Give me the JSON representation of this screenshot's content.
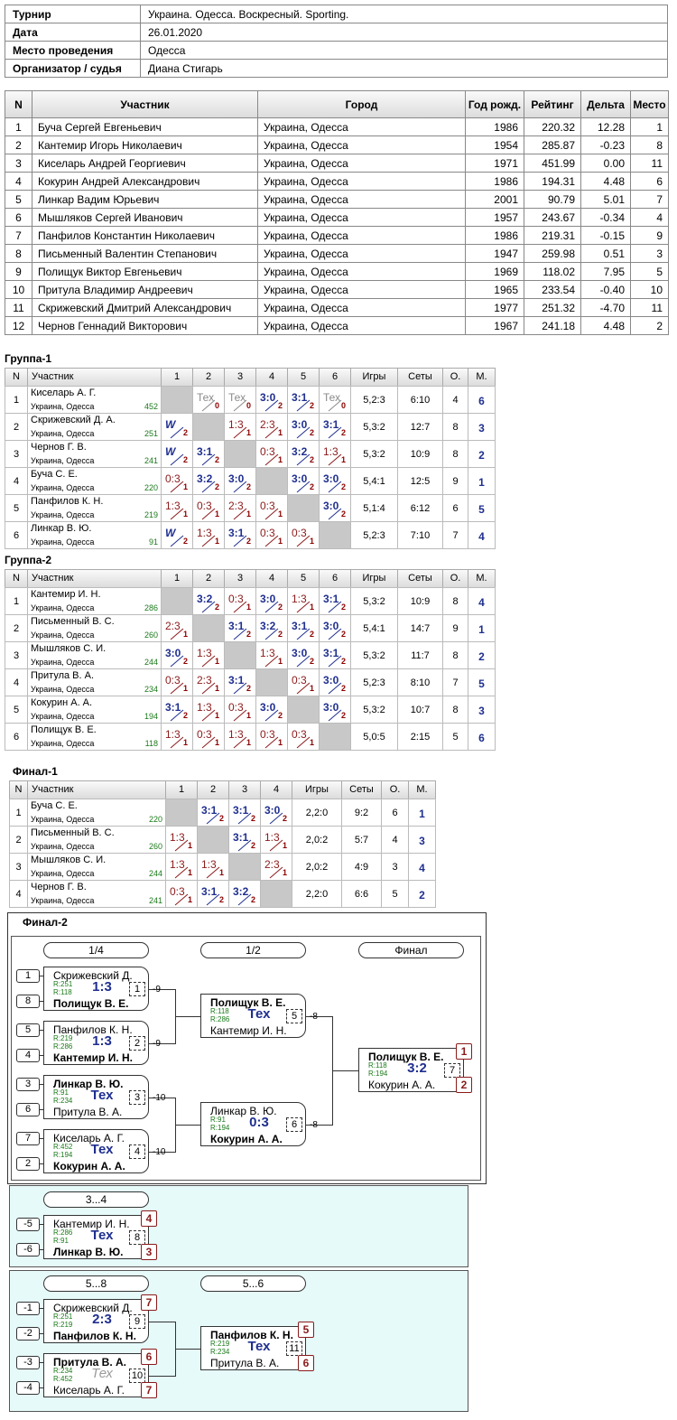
{
  "info": {
    "rows": [
      [
        "Турнир",
        "Украина. Одесса. Воскресный. Sporting."
      ],
      [
        "Дата",
        "26.01.2020"
      ],
      [
        "Место проведения",
        "Одесса"
      ],
      [
        "Организатор / судья",
        "Диана Стигарь"
      ]
    ]
  },
  "players": {
    "header": [
      "N",
      "Участник",
      "Город",
      "Год рожд.",
      "Рейтинг",
      "Дельта",
      "Место"
    ],
    "rows": [
      [
        1,
        "Буча Сергей Евгеньевич",
        "Украина, Одесса",
        1986,
        "220.32",
        "12.28",
        1
      ],
      [
        2,
        "Кантемир Игорь Николаевич",
        "Украина, Одесса",
        1954,
        "285.87",
        "-0.23",
        8
      ],
      [
        3,
        "Киселарь Андрей Георгиевич",
        "Украина, Одесса",
        1971,
        "451.99",
        "0.00",
        11
      ],
      [
        4,
        "Кокурин Андрей Александрович",
        "Украина, Одесса",
        1986,
        "194.31",
        "4.48",
        6
      ],
      [
        5,
        "Линкар Вадим Юрьевич",
        "Украина, Одесса",
        2001,
        "90.79",
        "5.01",
        7
      ],
      [
        6,
        "Мышляков Сергей Иванович",
        "Украина, Одесса",
        1957,
        "243.67",
        "-0.34",
        4
      ],
      [
        7,
        "Панфилов Константин Николаевич",
        "Украина, Одесса",
        1986,
        "219.31",
        "-0.15",
        9
      ],
      [
        8,
        "Письменный Валентин Степанович",
        "Украина, Одесса",
        1947,
        "259.98",
        "0.51",
        3
      ],
      [
        9,
        "Полищук Виктор Евгеньевич",
        "Украина, Одесса",
        1969,
        "118.02",
        "7.95",
        5
      ],
      [
        10,
        "Притула Владимир Андреевич",
        "Украина, Одесса",
        1965,
        "233.54",
        "-0.40",
        10
      ],
      [
        11,
        "Скрижевский Дмитрий Александрович",
        "Украина, Одесса",
        1977,
        "251.32",
        "-4.70",
        11
      ],
      [
        12,
        "Чернов Геннадий Викторович",
        "Украина, Одесса",
        1967,
        "241.18",
        "4.48",
        2
      ]
    ]
  },
  "groups": [
    {
      "title": "Группа-1",
      "header": [
        "N",
        "Участник",
        "1",
        "2",
        "3",
        "4",
        "5",
        "6",
        "Игры",
        "Сеты",
        "О.",
        "М."
      ],
      "rows": [
        {
          "n": 1,
          "name": "Киселарь А. Г.",
          "city": "Украина, Одесса",
          "rating": 452,
          "results": [
            null,
            [
              "Тех",
              0
            ],
            [
              "Тех",
              0
            ],
            [
              "3:0",
              2
            ],
            [
              "3:1",
              2
            ],
            [
              "Тех",
              0
            ]
          ],
          "games": "5,2:3",
          "sets": "6:10",
          "points": 4,
          "place": 6
        },
        {
          "n": 2,
          "name": "Скрижевский Д. А.",
          "city": "Украина, Одесса",
          "rating": 251,
          "results": [
            [
              "W",
              2
            ],
            null,
            [
              "1:3",
              1
            ],
            [
              "2:3",
              1
            ],
            [
              "3:0",
              2
            ],
            [
              "3:1",
              2
            ]
          ],
          "games": "5,3:2",
          "sets": "12:7",
          "points": 8,
          "place": 3
        },
        {
          "n": 3,
          "name": "Чернов Г. В.",
          "city": "Украина, Одесса",
          "rating": 241,
          "results": [
            [
              "W",
              2
            ],
            [
              "3:1",
              2
            ],
            null,
            [
              "0:3",
              1
            ],
            [
              "3:2",
              2
            ],
            [
              "1:3",
              1
            ]
          ],
          "games": "5,3:2",
          "sets": "10:9",
          "points": 8,
          "place": 2
        },
        {
          "n": 4,
          "name": "Буча С. Е.",
          "city": "Украина, Одесса",
          "rating": 220,
          "results": [
            [
              "0:3",
              1
            ],
            [
              "3:2",
              2
            ],
            [
              "3:0",
              2
            ],
            null,
            [
              "3:0",
              2
            ],
            [
              "3:0",
              2
            ]
          ],
          "games": "5,4:1",
          "sets": "12:5",
          "points": 9,
          "place": 1
        },
        {
          "n": 5,
          "name": "Панфилов К. Н.",
          "city": "Украина, Одесса",
          "rating": 219,
          "results": [
            [
              "1:3",
              1
            ],
            [
              "0:3",
              1
            ],
            [
              "2:3",
              1
            ],
            [
              "0:3",
              1
            ],
            null,
            [
              "3:0",
              2
            ]
          ],
          "games": "5,1:4",
          "sets": "6:12",
          "points": 6,
          "place": 5
        },
        {
          "n": 6,
          "name": "Линкар В. Ю.",
          "city": "Украина, Одесса",
          "rating": 91,
          "results": [
            [
              "W",
              2
            ],
            [
              "1:3",
              1
            ],
            [
              "3:1",
              2
            ],
            [
              "0:3",
              1
            ],
            [
              "0:3",
              1
            ],
            null
          ],
          "games": "5,2:3",
          "sets": "7:10",
          "points": 7,
          "place": 4
        }
      ]
    },
    {
      "title": "Группа-2",
      "header": [
        "N",
        "Участник",
        "1",
        "2",
        "3",
        "4",
        "5",
        "6",
        "Игры",
        "Сеты",
        "О.",
        "М."
      ],
      "rows": [
        {
          "n": 1,
          "name": "Кантемир И. Н.",
          "city": "Украина, Одесса",
          "rating": 286,
          "results": [
            null,
            [
              "3:2",
              2
            ],
            [
              "0:3",
              1
            ],
            [
              "3:0",
              2
            ],
            [
              "1:3",
              1
            ],
            [
              "3:1",
              2
            ]
          ],
          "games": "5,3:2",
          "sets": "10:9",
          "points": 8,
          "place": 4
        },
        {
          "n": 2,
          "name": "Письменный В. С.",
          "city": "Украина, Одесса",
          "rating": 260,
          "results": [
            [
              "2:3",
              1
            ],
            null,
            [
              "3:1",
              2
            ],
            [
              "3:2",
              2
            ],
            [
              "3:1",
              2
            ],
            [
              "3:0",
              2
            ]
          ],
          "games": "5,4:1",
          "sets": "14:7",
          "points": 9,
          "place": 1
        },
        {
          "n": 3,
          "name": "Мышляков С. И.",
          "city": "Украина, Одесса",
          "rating": 244,
          "results": [
            [
              "3:0",
              2
            ],
            [
              "1:3",
              1
            ],
            null,
            [
              "1:3",
              1
            ],
            [
              "3:0",
              2
            ],
            [
              "3:1",
              2
            ]
          ],
          "games": "5,3:2",
          "sets": "11:7",
          "points": 8,
          "place": 2
        },
        {
          "n": 4,
          "name": "Притула В. А.",
          "city": "Украина, Одесса",
          "rating": 234,
          "results": [
            [
              "0:3",
              1
            ],
            [
              "2:3",
              1
            ],
            [
              "3:1",
              2
            ],
            null,
            [
              "0:3",
              1
            ],
            [
              "3:0",
              2
            ]
          ],
          "games": "5,2:3",
          "sets": "8:10",
          "points": 7,
          "place": 5
        },
        {
          "n": 5,
          "name": "Кокурин А. А.",
          "city": "Украина, Одесса",
          "rating": 194,
          "results": [
            [
              "3:1",
              2
            ],
            [
              "1:3",
              1
            ],
            [
              "0:3",
              1
            ],
            [
              "3:0",
              2
            ],
            null,
            [
              "3:0",
              2
            ]
          ],
          "games": "5,3:2",
          "sets": "10:7",
          "points": 8,
          "place": 3
        },
        {
          "n": 6,
          "name": "Полищук В. Е.",
          "city": "Украина, Одесса",
          "rating": 118,
          "results": [
            [
              "1:3",
              1
            ],
            [
              "0:3",
              1
            ],
            [
              "1:3",
              1
            ],
            [
              "0:3",
              1
            ],
            [
              "0:3",
              1
            ],
            null
          ],
          "games": "5,0:5",
          "sets": "2:15",
          "points": 5,
          "place": 6
        }
      ]
    },
    {
      "title": "Финал-1",
      "header": [
        "N",
        "Участник",
        "1",
        "2",
        "3",
        "4",
        "Игры",
        "Сеты",
        "О.",
        "М."
      ],
      "rows": [
        {
          "n": 1,
          "name": "Буча С. Е.",
          "city": "Украина, Одесса",
          "rating": 220,
          "results": [
            null,
            [
              "3:1",
              2
            ],
            [
              "3:1",
              2
            ],
            [
              "3:0",
              2
            ]
          ],
          "games": "2,2:0",
          "sets": "9:2",
          "points": 6,
          "place": 1
        },
        {
          "n": 2,
          "name": "Письменный В. С.",
          "city": "Украина, Одесса",
          "rating": 260,
          "results": [
            [
              "1:3",
              1
            ],
            null,
            [
              "3:1",
              2
            ],
            [
              "1:3",
              1
            ]
          ],
          "games": "2,0:2",
          "sets": "5:7",
          "points": 4,
          "place": 3
        },
        {
          "n": 3,
          "name": "Мышляков С. И.",
          "city": "Украина, Одесса",
          "rating": 244,
          "results": [
            [
              "1:3",
              1
            ],
            [
              "1:3",
              1
            ],
            null,
            [
              "2:3",
              1
            ]
          ],
          "games": "2,0:2",
          "sets": "4:9",
          "points": 3,
          "place": 4
        },
        {
          "n": 4,
          "name": "Чернов Г. В.",
          "city": "Украина, Одесса",
          "rating": 241,
          "results": [
            [
              "0:3",
              1
            ],
            [
              "3:1",
              2
            ],
            [
              "3:2",
              2
            ],
            null
          ],
          "games": "2,2:0",
          "sets": "6:6",
          "points": 5,
          "place": 2
        }
      ]
    }
  ],
  "final2": {
    "title": "Финал-2",
    "sections": [
      {
        "rounds": [
          "1/4",
          "1/2",
          "Финал"
        ],
        "matches": [
          {
            "no": 1,
            "seeds": [
              1,
              8
            ],
            "players": [
              {
                "name": "Скрижевский Д.",
                "rating": "R:251"
              },
              {
                "name": "Полищук В. Е.",
                "rating": "R:118"
              }
            ],
            "winner": 1,
            "score": "1:3",
            "next": -9
          },
          {
            "no": 2,
            "seeds": [
              5,
              4
            ],
            "players": [
              {
                "name": "Панфилов К. Н.",
                "rating": "R:219"
              },
              {
                "name": "Кантемир И. Н.",
                "rating": "R:286"
              }
            ],
            "winner": 1,
            "score": "1:3",
            "next": -9
          },
          {
            "no": 3,
            "seeds": [
              3,
              6
            ],
            "players": [
              {
                "name": "Линкар В. Ю.",
                "rating": "R:91"
              },
              {
                "name": "Притула В. А.",
                "rating": "R:234"
              }
            ],
            "winner": 0,
            "score": "Тех",
            "next": -10
          },
          {
            "no": 4,
            "seeds": [
              7,
              2
            ],
            "players": [
              {
                "name": "Киселарь А. Г.",
                "rating": "R:452"
              },
              {
                "name": "Кокурин А. А.",
                "rating": "R:194"
              }
            ],
            "winner": 1,
            "score": "Тех",
            "next": -10
          },
          {
            "no": 5,
            "players": [
              {
                "name": "Полищук В. Е.",
                "rating": "R:118"
              },
              {
                "name": "Кантемир И. Н.",
                "rating": "R:286"
              }
            ],
            "winner": 0,
            "score": "Тех",
            "next": -8
          },
          {
            "no": 6,
            "players": [
              {
                "name": "Линкар В. Ю.",
                "rating": "R:91"
              },
              {
                "name": "Кокурин А. А.",
                "rating": "R:194"
              }
            ],
            "winner": 1,
            "score": "0:3",
            "next": -8
          },
          {
            "no": 7,
            "players": [
              {
                "name": "Полищук В. Е.",
                "rating": "R:118"
              },
              {
                "name": "Кокурин А. А.",
                "rating": "R:194"
              }
            ],
            "winner": 0,
            "score": "3:2",
            "places": [
              1,
              2
            ]
          }
        ]
      },
      {
        "rounds": [
          "3...4"
        ],
        "matches": [
          {
            "no": 8,
            "seeds": [
              -5,
              -6
            ],
            "players": [
              {
                "name": "Кантемир И. Н.",
                "rating": "R:286"
              },
              {
                "name": "Линкар В. Ю.",
                "rating": "R:91"
              }
            ],
            "winner": 1,
            "score": "Тех",
            "places": [
              4,
              3
            ]
          }
        ]
      },
      {
        "rounds": [
          "5...8",
          "5...6"
        ],
        "matches": [
          {
            "no": 9,
            "seeds": [
              -1,
              -2
            ],
            "players": [
              {
                "name": "Скрижевский Д.",
                "rating": "R:251"
              },
              {
                "name": "Панфилов К. Н.",
                "rating": "R:219"
              }
            ],
            "winner": 1,
            "score": "2:3",
            "places": [
              7,
              null
            ]
          },
          {
            "no": 10,
            "seeds": [
              -3,
              -4
            ],
            "players": [
              {
                "name": "Притула В. А.",
                "rating": "R:234"
              },
              {
                "name": "Киселарь А. Г.",
                "rating": "R:452"
              }
            ],
            "winner": 0,
            "score": "Тех",
            "color": "#9a9a9a",
            "places": [
              6,
              7
            ]
          },
          {
            "no": 11,
            "players": [
              {
                "name": "Панфилов К. Н.",
                "rating": "R:219"
              },
              {
                "name": "Притула В. А.",
                "rating": "R:234"
              }
            ],
            "winner": 0,
            "score": "Тех",
            "places": [
              5,
              6
            ]
          }
        ]
      }
    ]
  }
}
